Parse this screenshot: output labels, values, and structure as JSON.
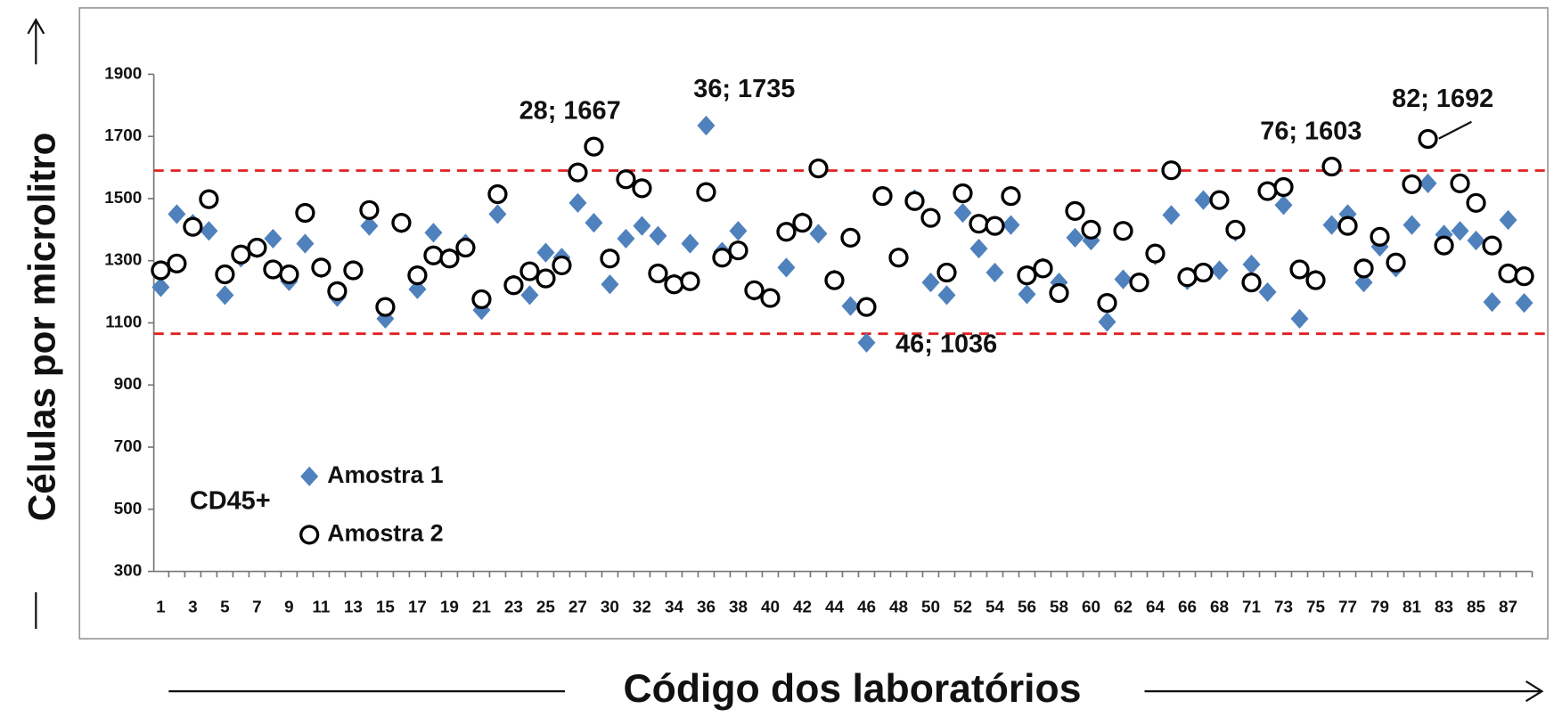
{
  "chart_data": {
    "type": "scatter",
    "y_label": "Células por microlitro",
    "x_label": "Código dos laboratórios",
    "inset_label": "CD45+",
    "categories": [
      "1",
      null,
      "3",
      null,
      "5",
      null,
      "7",
      null,
      "9",
      null,
      "11",
      null,
      "13",
      null,
      "15",
      null,
      "17",
      null,
      "19",
      null,
      "21",
      null,
      "23",
      null,
      "25",
      null,
      "27",
      null,
      "30",
      null,
      "32",
      null,
      "34",
      null,
      "36",
      null,
      "38",
      null,
      "40",
      null,
      "42",
      null,
      "44",
      null,
      "46",
      null,
      "48",
      null,
      "50",
      null,
      "52",
      null,
      "54",
      null,
      "56",
      null,
      "58",
      null,
      "60",
      null,
      "62",
      null,
      "64",
      null,
      "66",
      null,
      "68",
      null,
      "71",
      null,
      "73",
      null,
      "75",
      null,
      "77",
      null,
      "79",
      null,
      "81",
      null,
      "83",
      null,
      "85",
      null,
      "87",
      null
    ],
    "series": [
      {
        "name": "Amostra 1",
        "marker": "diamond",
        "color": "#4f81bd",
        "values": [
          1215,
          1450,
          1419,
          1396,
          1189,
          1310,
          1339,
          1371,
          1234,
          1355,
          1275,
          1183,
          1269,
          1412,
          1113,
          1419,
          1208,
          1390,
          1310,
          1355,
          1141,
          1450,
          1224,
          1189,
          1326,
          1310,
          1486,
          1422,
          1224,
          1371,
          1412,
          1380,
          1227,
          1355,
          1735,
          1329,
          1396,
          1202,
          1180,
          1278,
          1425,
          1387,
          1240,
          1154,
          1036,
          1508,
          1310,
          1498,
          1230,
          1189,
          1454,
          1339,
          1262,
          1415,
          1192,
          1278,
          1230,
          1374,
          1365,
          1103,
          1240,
          1230,
          1317,
          1447,
          1237,
          1495,
          1269,
          1393,
          1288,
          1199,
          1479,
          1113,
          1240,
          1415,
          1450,
          1230,
          1345,
          1278,
          1415,
          1549,
          1384,
          1396,
          1365,
          1167,
          1431,
          1164
        ]
      },
      {
        "name": "Amostra 2",
        "marker": "circle",
        "color": "#000000",
        "values": [
          1269,
          1291,
          1409,
          1498,
          1256,
          1320,
          1342,
          1272,
          1256,
          1454,
          1278,
          1202,
          1269,
          1463,
          1151,
          1422,
          1253,
          1317,
          1307,
          1342,
          1176,
          1514,
          1221,
          1266,
          1243,
          1285,
          1584,
          1667,
          1307,
          1562,
          1533,
          1259,
          1224,
          1234,
          1521,
          1310,
          1333,
          1205,
          1180,
          1393,
          1422,
          1597,
          1237,
          1374,
          1151,
          1508,
          1310,
          1492,
          1438,
          1262,
          1517,
          1419,
          1412,
          1508,
          1253,
          1275,
          1196,
          1460,
          1400,
          1164,
          1396,
          1230,
          1323,
          1591,
          1247,
          1262,
          1495,
          1400,
          1230,
          1524,
          1537,
          1272,
          1237,
          1603,
          1412,
          1275,
          1377,
          1294,
          1546,
          1692,
          1349,
          1549,
          1486,
          1349,
          1259,
          1250
        ]
      }
    ],
    "reference_lines": [
      {
        "value": 1590,
        "color": "#e02020"
      },
      {
        "value": 1065,
        "color": "#e02020"
      }
    ],
    "annotations": [
      "28; 1667",
      "36; 1735",
      "46; 1036",
      "76; 1603",
      "82; 1692"
    ],
    "ylim": [
      300,
      1900
    ],
    "yticks": [
      300,
      500,
      700,
      900,
      1100,
      1300,
      1500,
      1700,
      1900
    ],
    "grid": false
  }
}
